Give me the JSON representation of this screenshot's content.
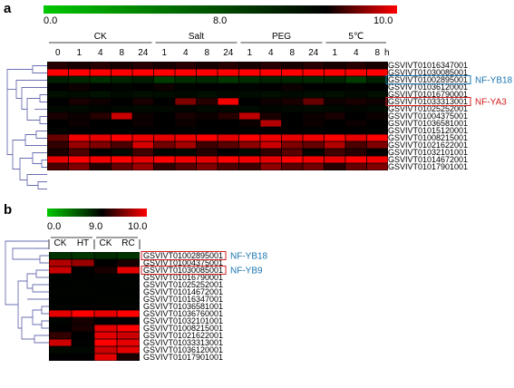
{
  "panel_a": {
    "letter": "a",
    "scale": {
      "min_label": "0.0",
      "mid_label": "8.0",
      "max_label": "10.0"
    },
    "time_unit": "h",
    "conditions": [
      {
        "label": "CK",
        "timepoints": [
          "0",
          "1",
          "4",
          "8",
          "24"
        ]
      },
      {
        "label": "Salt",
        "timepoints": [
          "1",
          "4",
          "8",
          "24"
        ]
      },
      {
        "label": "PEG",
        "timepoints": [
          "1",
          "4",
          "8",
          "24"
        ]
      },
      {
        "label": "5℃",
        "timepoints": [
          "1",
          "4",
          "8"
        ]
      }
    ],
    "genes": [
      "GSVIVT01016347001",
      "GSVIVT01030085001",
      "GSVIVT01002895001",
      "GSVIVT01036120001",
      "GSVIVT01016790001",
      "GSVIVT01033313001",
      "GSVIVT01025252001",
      "GSVIVT01004375001",
      "GSVIVT01036581001",
      "GSVIVT01015120001",
      "GSVIVT01008215001",
      "GSVIVT01021622001",
      "GSVIVT01032101001",
      "GSVIVT01014672001",
      "GSVIVT01017901001"
    ],
    "matrix": [
      [
        8.3,
        8.2,
        8.3,
        8.2,
        8.3,
        8.2,
        8.3,
        8.2,
        8.3,
        8.2,
        8.3,
        8.2,
        8.3,
        8.2,
        8.3,
        8.2
      ],
      [
        10,
        10,
        10,
        10,
        10,
        10,
        10,
        10,
        10,
        10,
        10,
        10,
        10,
        10,
        10,
        10
      ],
      [
        6.8,
        6.5,
        6.2,
        6.6,
        6.9,
        5.6,
        6.2,
        6.4,
        5.8,
        6.3,
        6.6,
        6.5,
        6.4,
        6.6,
        5.6,
        6.7
      ],
      [
        8.0,
        8.1,
        8.0,
        7.8,
        8.0,
        8.1,
        7.9,
        8.0,
        8.0,
        7.9,
        8.0,
        8.1,
        8.0,
        8.0,
        7.9,
        8.0
      ],
      [
        7.4,
        7.5,
        7.3,
        7.6,
        7.4,
        7.5,
        7.6,
        7.4,
        7.6,
        7.5,
        7.4,
        7.6,
        7.5,
        7.4,
        7.6,
        7.4
      ],
      [
        8.0,
        8.2,
        8.1,
        8.0,
        8.2,
        8.0,
        9.0,
        8.3,
        9.9,
        8.0,
        8.1,
        8.2,
        8.8,
        8.1,
        8.2,
        8.1
      ],
      [
        7.7,
        7.6,
        7.8,
        7.7,
        7.6,
        7.7,
        7.8,
        7.6,
        7.7,
        7.6,
        7.8,
        7.7,
        7.6,
        7.7,
        7.8,
        7.6
      ],
      [
        8.2,
        8.1,
        8.3,
        9.6,
        8.1,
        8.0,
        8.2,
        8.1,
        8.3,
        9.5,
        8.2,
        8.0,
        8.1,
        8.2,
        8.0,
        8.1
      ],
      [
        8.0,
        8.1,
        8.0,
        8.0,
        8.1,
        8.0,
        8.1,
        8.0,
        8.0,
        8.1,
        9.4,
        8.0,
        8.1,
        8.0,
        8.1,
        8.0
      ],
      [
        7.9,
        8.0,
        8.0,
        7.9,
        8.0,
        8.0,
        7.9,
        8.0,
        8.0,
        7.9,
        8.0,
        8.0,
        7.9,
        8.0,
        8.0,
        7.9
      ],
      [
        8.8,
        9.9,
        9.8,
        10,
        9.9,
        9.8,
        9.9,
        10,
        9.8,
        10,
        9.9,
        9.8,
        9.9,
        10,
        9.8,
        10
      ],
      [
        8.4,
        9.2,
        9.0,
        8.6,
        9.7,
        8.9,
        9.3,
        8.5,
        8.7,
        9.1,
        9.6,
        9.0,
        8.8,
        9.4,
        8.6,
        9.0
      ],
      [
        8.2,
        8.6,
        8.0,
        7.6,
        8.5,
        7.8,
        7.7,
        8.3,
        8.0,
        7.6,
        8.4,
        8.7,
        7.8,
        8.5,
        8.3,
        8.0
      ],
      [
        9.8,
        10,
        9.9,
        10,
        9.8,
        10,
        9.9,
        9.8,
        10,
        9.9,
        9.8,
        10,
        9.9,
        9.8,
        10,
        9.9
      ],
      [
        8.6,
        9.0,
        8.3,
        8.8,
        9.2,
        8.4,
        8.7,
        9.0,
        8.6,
        8.5,
        9.1,
        8.7,
        8.9,
        8.3,
        8.8,
        9.0
      ]
    ],
    "callouts": [
      {
        "gene_index": 2,
        "label": "NF-YB18",
        "color": "#1a75b0"
      },
      {
        "gene_index": 5,
        "label": "NF-YA3",
        "color": "#d42020"
      }
    ]
  },
  "panel_b": {
    "letter": "b",
    "scale": {
      "min_label": "0.0",
      "mid_label": "9.0",
      "max_label": "10.0"
    },
    "columns": [
      "CK",
      "HT",
      "CK",
      "RC"
    ],
    "genes": [
      "GSVIVT01002895001",
      "GSVIVT01004375001",
      "GSVIVT01030085001",
      "GSVIVT01016790001",
      "GSVIVT01025252001",
      "GSVIVT01014672001",
      "GSVIVT01016347001",
      "GSVIVT01036581001",
      "GSVIVT01036760001",
      "GSVIVT01032101001",
      "GSVIVT01008215001",
      "GSVIVT01021622001",
      "GSVIVT01033313001",
      "GSVIVT01036120001",
      "GSVIVT01017901001"
    ],
    "matrix": [
      [
        6.8,
        6.6,
        7.0,
        6.7
      ],
      [
        9.7,
        9.6,
        9.0,
        9.1
      ],
      [
        9.8,
        9.0,
        9.1,
        9.9
      ],
      [
        8.8,
        8.9,
        8.8,
        8.9
      ],
      [
        8.9,
        8.8,
        8.9,
        8.8
      ],
      [
        8.8,
        8.8,
        8.9,
        8.9
      ],
      [
        8.9,
        8.9,
        8.8,
        8.8
      ],
      [
        8.8,
        8.9,
        8.9,
        8.8
      ],
      [
        9.9,
        10,
        9.9,
        10
      ],
      [
        8.8,
        9.1,
        9.0,
        9.0
      ],
      [
        9.0,
        9.1,
        9.9,
        10
      ],
      [
        9.2,
        9.0,
        9.9,
        9.8
      ],
      [
        9.8,
        8.9,
        10,
        9.9
      ],
      [
        8.6,
        8.7,
        9.8,
        9.9
      ],
      [
        9.0,
        9.0,
        9.9,
        9.1
      ]
    ],
    "callouts": [
      {
        "gene_index": 0,
        "label": "NF-YB18",
        "color": "#1a75b0"
      },
      {
        "gene_index": 2,
        "label": "NF-YB9",
        "color": "#1a75b0"
      }
    ]
  },
  "colors": {
    "low": "#00c800",
    "mid": "#000000",
    "high": "#ff0000",
    "gene_box": "#d42020",
    "blue_box": "#1a75b0"
  }
}
